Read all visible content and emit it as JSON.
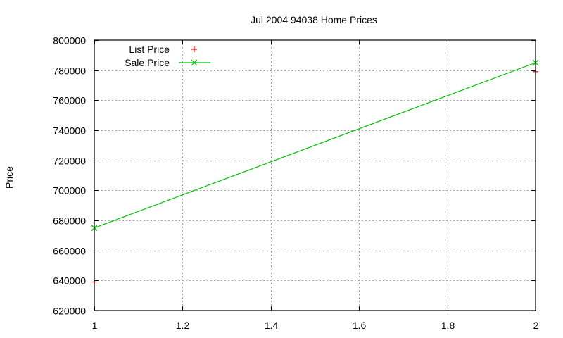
{
  "chart_data": {
    "type": "line",
    "title": "Jul 2004 94038 Home Prices",
    "xlabel": "",
    "ylabel": "Price",
    "xlim": [
      1,
      2
    ],
    "ylim": [
      620000,
      800000
    ],
    "x_ticks": [
      1,
      1.2,
      1.4,
      1.6,
      1.8,
      2
    ],
    "x_tick_labels": [
      "1",
      "1.2",
      "1.4",
      "1.6",
      "1.8",
      "2"
    ],
    "y_ticks": [
      620000,
      640000,
      660000,
      680000,
      700000,
      720000,
      740000,
      760000,
      780000,
      800000
    ],
    "y_tick_labels": [
      "620000",
      "640000",
      "660000",
      "680000",
      "700000",
      "720000",
      "740000",
      "760000",
      "780000",
      "800000"
    ],
    "grid": true,
    "legend_position": "top-left",
    "series": [
      {
        "name": "List Price",
        "style": "points",
        "marker": "+",
        "color": "#ff0000",
        "x": [
          1,
          2
        ],
        "values": [
          639000,
          779000
        ]
      },
      {
        "name": "Sale Price",
        "style": "linespoints",
        "marker": "x",
        "color": "#00c000",
        "x": [
          1,
          2
        ],
        "values": [
          675000,
          785000
        ]
      }
    ]
  }
}
